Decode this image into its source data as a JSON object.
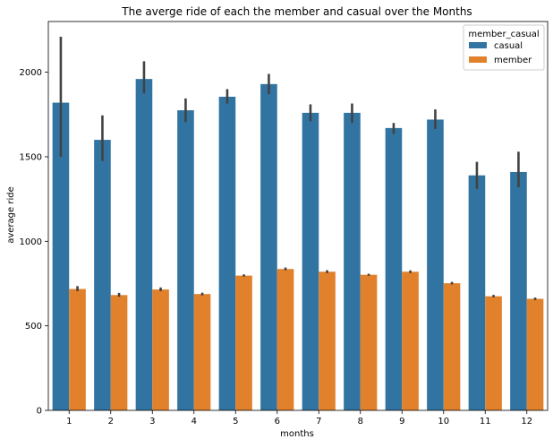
{
  "chart_data": {
    "type": "bar",
    "title": "The averge ride of each the member and casual over the Months",
    "xlabel": "months",
    "ylabel": "average ride",
    "categories": [
      "1",
      "2",
      "3",
      "4",
      "5",
      "6",
      "7",
      "8",
      "9",
      "10",
      "11",
      "12"
    ],
    "ylim": [
      0,
      2300
    ],
    "yticks": [
      0,
      500,
      1000,
      1500,
      2000
    ],
    "grid": false,
    "legend": {
      "title": "member_casual",
      "position": "top-right"
    },
    "series": [
      {
        "name": "casual",
        "color": "#3274a1",
        "values": [
          1820,
          1600,
          1960,
          1775,
          1855,
          1930,
          1760,
          1760,
          1670,
          1720,
          1390,
          1410
        ],
        "err_low": [
          1500,
          1475,
          1875,
          1705,
          1815,
          1870,
          1710,
          1700,
          1635,
          1665,
          1310,
          1320
        ],
        "err_high": [
          2210,
          1745,
          2065,
          1845,
          1900,
          1990,
          1810,
          1815,
          1700,
          1780,
          1470,
          1530
        ]
      },
      {
        "name": "member",
        "color": "#e1812c",
        "values": [
          718,
          682,
          715,
          688,
          797,
          836,
          820,
          802,
          820,
          752,
          675,
          660
        ],
        "err_low": [
          705,
          672,
          705,
          680,
          791,
          829,
          812,
          796,
          812,
          745,
          668,
          652
        ],
        "err_high": [
          735,
          695,
          727,
          696,
          804,
          845,
          829,
          808,
          828,
          760,
          683,
          667
        ]
      }
    ]
  }
}
